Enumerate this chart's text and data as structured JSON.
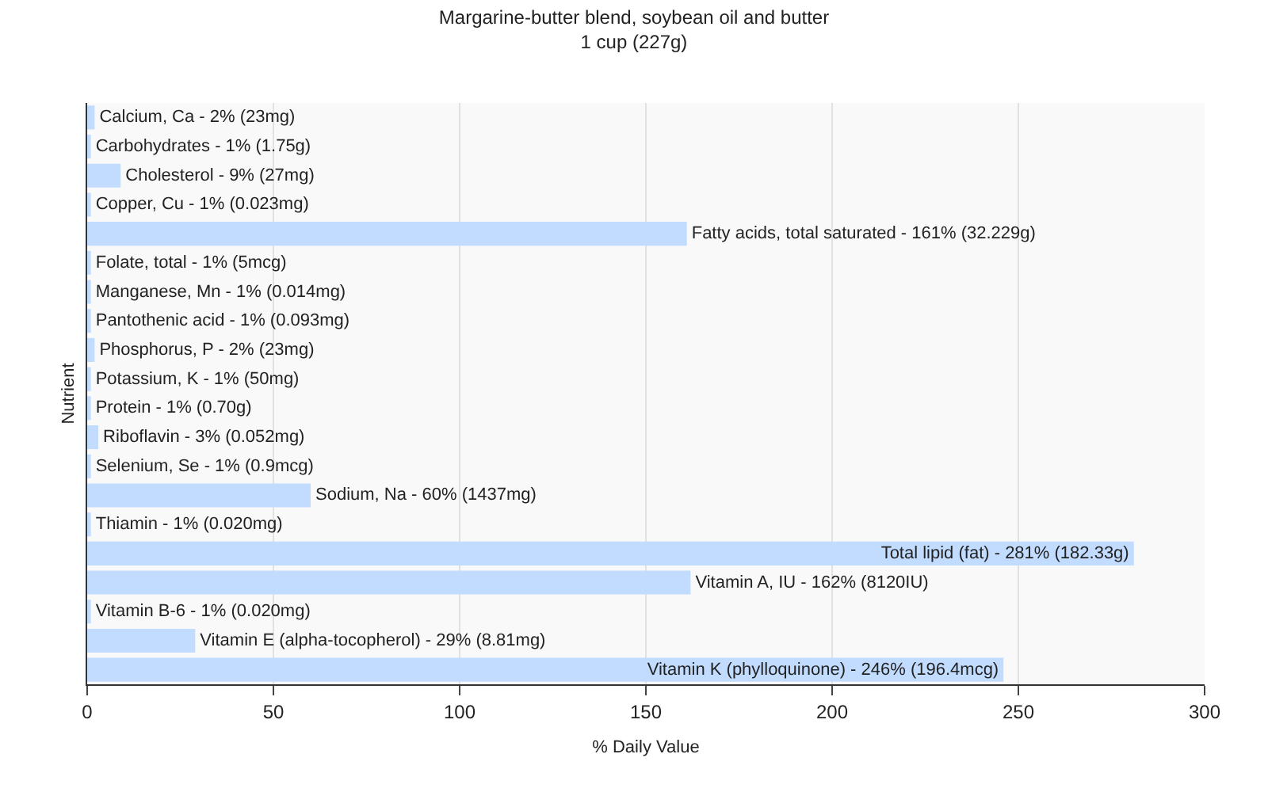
{
  "chart_data": {
    "type": "bar",
    "orientation": "horizontal",
    "title": "Margarine-butter blend, soybean oil and butter\n1 cup (227g)",
    "xlabel": "% Daily Value",
    "ylabel": "Nutrient",
    "categories": [
      "Calcium, Ca -",
      "Carbohydrates -",
      "Cholesterol -",
      "Copper, Cu -",
      "Fatty acids, total saturated -",
      "Folate, total -",
      "Manganese, Mn -",
      "Pantothenic acid -",
      "Phosphorus, P -",
      "Potassium, K -",
      "Protein -",
      "Riboflavin -",
      "Selenium, Se -",
      "Sodium, Na -",
      "Thiamin -",
      "Total lipid (fat) -",
      "Vitamin A, IU -",
      "Vitamin B-6 -",
      "Vitamin E (alpha-tocopherol) -",
      "Vitamin K (phylloquinone) -"
    ],
    "tick_labels": "x",
    "values": [
      2,
      1,
      9,
      1,
      161,
      1,
      1,
      1,
      2,
      1,
      1,
      3,
      1,
      60,
      1,
      281,
      162,
      1,
      29,
      246
    ],
    "value_labels": [
      "2% (23mg)",
      "1% (1.75g)",
      "9% (27mg)",
      "1% (0.023mg)",
      "161% (32.229g)",
      "1% (5mcg)",
      "1% (0.014mg)",
      "1% (0.093mg)",
      "2% (23mg)",
      "1% (50mg)",
      "1% (0.70g)",
      "3% (0.052mg)",
      "1% (0.9mcg)",
      "60% (1437mg)",
      "1% (0.020mg)",
      "281% (182.33g)",
      "162% (8120IU)",
      "1% (0.020mg)",
      "29% (8.81mg)",
      "246% (196.4mcg)"
    ],
    "color": "#c2dcff",
    "xlim": [
      0,
      300
    ],
    "xticks": [
      0,
      50,
      100,
      150,
      200,
      250,
      300
    ],
    "grid": "x",
    "legend": false
  }
}
